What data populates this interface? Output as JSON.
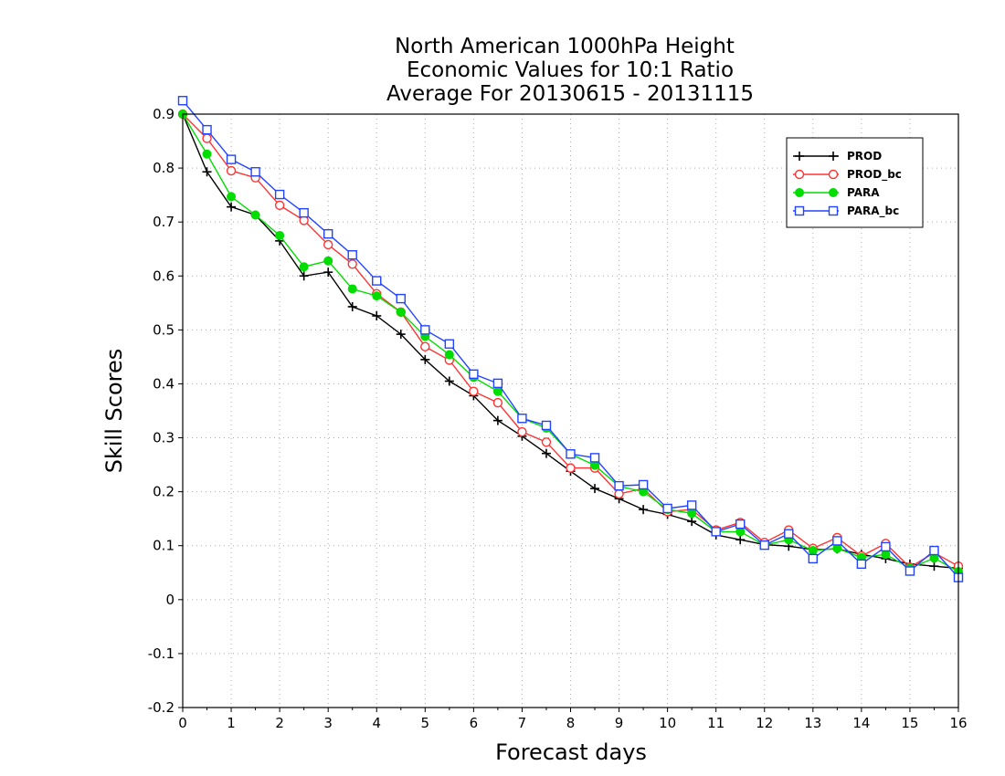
{
  "chart_data": {
    "type": "line",
    "title": [
      "North American 1000hPa Height",
      "Economic Values for 10:1 Ratio",
      "Average For 20130615 - 20131115"
    ],
    "xlabel": "Forecast days",
    "ylabel": "Skill Scores",
    "xlim": [
      0,
      16
    ],
    "ylim": [
      -0.2,
      0.9
    ],
    "xticks": [
      "0",
      "1",
      "2",
      "3",
      "4",
      "5",
      "6",
      "7",
      "8",
      "9",
      "10",
      "11",
      "12",
      "13",
      "14",
      "15",
      "16"
    ],
    "yticks": [
      "-0.2",
      "-0.1",
      "0",
      "0.1",
      "0.2",
      "0.3",
      "0.4",
      "0.5",
      "0.6",
      "0.7",
      "0.8",
      "0.9"
    ],
    "grid": true,
    "legend_position": "top-right",
    "x": [
      0,
      0.5,
      1,
      1.5,
      2,
      2.5,
      3,
      3.5,
      4,
      4.5,
      5,
      5.5,
      6,
      6.5,
      7,
      7.5,
      8,
      8.5,
      9,
      9.5,
      10,
      10.5,
      11,
      11.5,
      12,
      12.5,
      13,
      13.5,
      14,
      14.5,
      15,
      15.5,
      16
    ],
    "series": [
      {
        "name": "PROD",
        "color": "#000000",
        "marker": "plus",
        "values": [
          0.9,
          0.793,
          0.728,
          0.713,
          0.665,
          0.6,
          0.607,
          0.543,
          0.526,
          0.492,
          0.445,
          0.405,
          0.378,
          0.332,
          0.303,
          0.271,
          0.238,
          0.206,
          0.187,
          0.167,
          0.158,
          0.145,
          0.12,
          0.111,
          0.102,
          0.099,
          0.093,
          0.094,
          0.084,
          0.076,
          0.066,
          0.062,
          0.058
        ]
      },
      {
        "name": "PROD_bc",
        "color": "#ff3333",
        "marker": "open-circle",
        "values": [
          0.9,
          0.855,
          0.795,
          0.782,
          0.731,
          0.703,
          0.658,
          0.622,
          0.567,
          0.533,
          0.469,
          0.444,
          0.386,
          0.365,
          0.311,
          0.292,
          0.244,
          0.244,
          0.196,
          0.206,
          0.163,
          0.167,
          0.129,
          0.143,
          0.106,
          0.129,
          0.095,
          0.115,
          0.081,
          0.104,
          0.06,
          0.087,
          0.062
        ]
      },
      {
        "name": "PARA",
        "color": "#00dd00",
        "marker": "filled-circle",
        "values": [
          0.9,
          0.826,
          0.747,
          0.713,
          0.675,
          0.617,
          0.628,
          0.576,
          0.563,
          0.533,
          0.488,
          0.454,
          0.412,
          0.386,
          0.336,
          0.318,
          0.27,
          0.249,
          0.21,
          0.2,
          0.167,
          0.16,
          0.126,
          0.126,
          0.101,
          0.111,
          0.091,
          0.095,
          0.078,
          0.084,
          0.058,
          0.077,
          0.052
        ]
      },
      {
        "name": "PARA_bc",
        "color": "#2244ff",
        "marker": "open-square",
        "values": [
          0.925,
          0.871,
          0.816,
          0.793,
          0.751,
          0.717,
          0.678,
          0.639,
          0.591,
          0.558,
          0.5,
          0.474,
          0.418,
          0.401,
          0.336,
          0.323,
          0.27,
          0.263,
          0.211,
          0.213,
          0.169,
          0.175,
          0.126,
          0.14,
          0.101,
          0.122,
          0.076,
          0.109,
          0.066,
          0.098,
          0.053,
          0.091,
          0.041
        ]
      }
    ]
  }
}
